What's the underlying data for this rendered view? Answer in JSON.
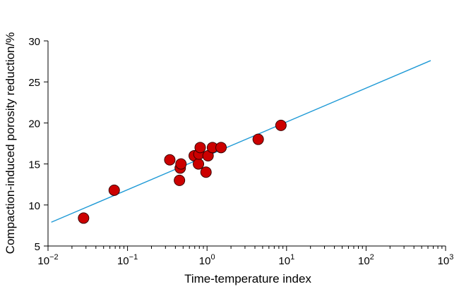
{
  "chart_data": {
    "type": "scatter",
    "xlabel": "Time-temperature index",
    "ylabel": "Compaction-induced porosity reduction/%",
    "x_scale": "log",
    "xlim": [
      0.01,
      1000
    ],
    "ylim": [
      5,
      30
    ],
    "x_ticks": [
      {
        "value": 0.01,
        "base": "10",
        "exp": "−2"
      },
      {
        "value": 0.1,
        "base": "10",
        "exp": "−1"
      },
      {
        "value": 1,
        "base": "10",
        "exp": "0"
      },
      {
        "value": 10,
        "base": "10",
        "exp": "1"
      },
      {
        "value": 100,
        "base": "10",
        "exp": "2"
      },
      {
        "value": 1000,
        "base": "10",
        "exp": "3"
      }
    ],
    "y_ticks": [
      5,
      10,
      15,
      20,
      25,
      30
    ],
    "grid": false,
    "legend": "none",
    "point_color": "#cc0000",
    "line_color": "#1f9ad6",
    "points": [
      {
        "x": 0.028,
        "y": 8.4
      },
      {
        "x": 0.068,
        "y": 11.8
      },
      {
        "x": 0.34,
        "y": 15.5
      },
      {
        "x": 0.45,
        "y": 13.0
      },
      {
        "x": 0.46,
        "y": 14.5
      },
      {
        "x": 0.47,
        "y": 15.0
      },
      {
        "x": 0.69,
        "y": 16.0
      },
      {
        "x": 0.78,
        "y": 15.0
      },
      {
        "x": 0.79,
        "y": 16.2
      },
      {
        "x": 0.82,
        "y": 17.0
      },
      {
        "x": 0.97,
        "y": 14.0
      },
      {
        "x": 1.03,
        "y": 16.0
      },
      {
        "x": 1.17,
        "y": 17.0
      },
      {
        "x": 1.5,
        "y": 17.0
      },
      {
        "x": 4.4,
        "y": 18.0
      },
      {
        "x": 8.5,
        "y": 19.7
      }
    ],
    "fit_line": {
      "x": [
        0.011,
        650
      ],
      "y": [
        7.9,
        27.6
      ]
    }
  }
}
